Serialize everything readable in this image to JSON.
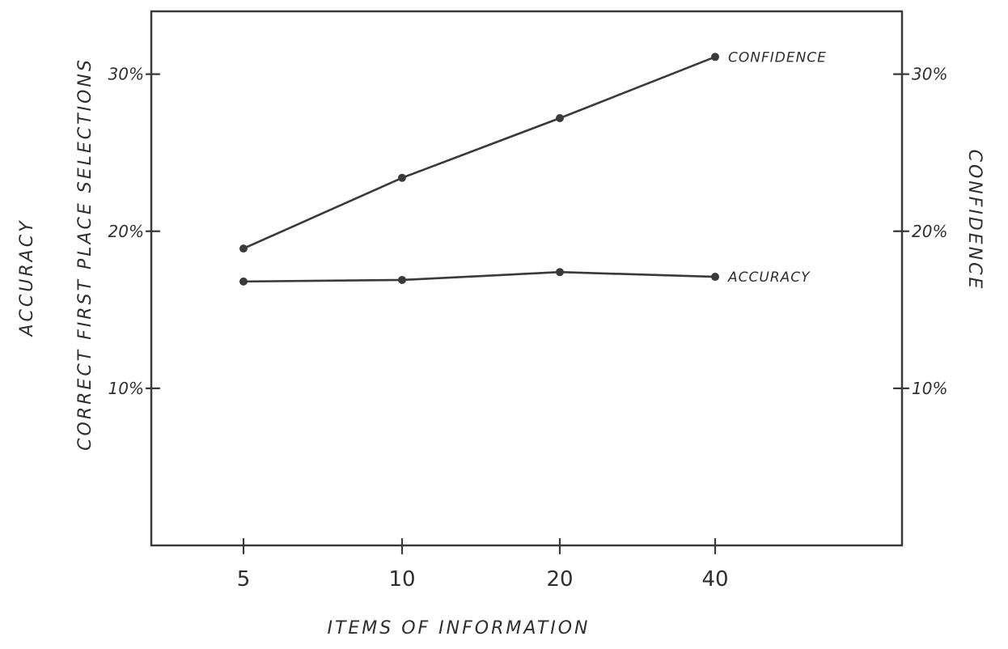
{
  "chart_data": {
    "type": "line",
    "x_categories": [
      "5",
      "10",
      "20",
      "40"
    ],
    "left_axis": {
      "labels": [
        "ACCURACY",
        "CORRECT FIRST PLACE SELECTIONS"
      ],
      "ticks": [
        {
          "value": 10,
          "label": "10%"
        },
        {
          "value": 20,
          "label": "20%"
        },
        {
          "value": 30,
          "label": "30%"
        }
      ],
      "ylim": [
        0,
        34
      ]
    },
    "right_axis": {
      "label": "CONFIDENCE",
      "ticks": [
        {
          "value": 10,
          "label": "10%"
        },
        {
          "value": 20,
          "label": "20%"
        },
        {
          "value": 30,
          "label": "30%"
        }
      ],
      "ylim": [
        0,
        34
      ]
    },
    "xlabel": "ITEMS OF INFORMATION",
    "series": [
      {
        "name": "CONFIDENCE",
        "axis": "right",
        "values": [
          18.9,
          23.4,
          27.2,
          31.1
        ]
      },
      {
        "name": "ACCURACY",
        "axis": "left",
        "values": [
          16.8,
          16.9,
          17.4,
          17.1
        ]
      }
    ],
    "grid": false,
    "legend": "inline labels at end of lines"
  }
}
